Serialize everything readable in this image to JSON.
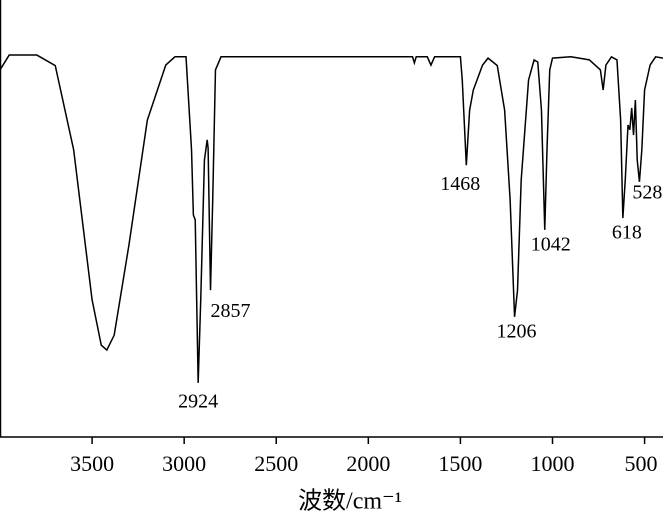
{
  "chart_data": {
    "type": "line",
    "x_label": "波数/cm⁻¹",
    "x": [
      4000,
      3950,
      3800,
      3700,
      3600,
      3500,
      3450,
      3420,
      3380,
      3300,
      3200,
      3100,
      3050,
      2990,
      2960,
      2950,
      2940,
      2924,
      2910,
      2890,
      2875,
      2870,
      2857,
      2845,
      2830,
      2800,
      1760,
      1750,
      1740,
      1680,
      1660,
      1640,
      1500,
      1490,
      1468,
      1450,
      1430,
      1400,
      1380,
      1350,
      1300,
      1260,
      1230,
      1206,
      1190,
      1170,
      1130,
      1100,
      1080,
      1060,
      1042,
      1030,
      1015,
      1000,
      900,
      800,
      740,
      725,
      710,
      680,
      650,
      630,
      618,
      605,
      590,
      580,
      570,
      560,
      550,
      540,
      528,
      515,
      500,
      470,
      440,
      400
    ],
    "values": [
      84,
      87.4,
      87.4,
      85,
      65.7,
      31.4,
      21,
      19.9,
      23.3,
      43.9,
      72.5,
      85.1,
      87,
      87,
      65.7,
      50.8,
      49.7,
      12.4,
      31.4,
      63.4,
      68,
      66.1,
      33.6,
      54.2,
      84,
      87,
      87,
      85.6,
      87,
      87,
      85.1,
      87,
      87,
      81.7,
      62.2,
      74.8,
      79.4,
      82.8,
      85.1,
      86.7,
      85,
      74.8,
      54.2,
      27.5,
      33.6,
      58.8,
      81.7,
      86.3,
      85.8,
      74.8,
      47.4,
      65.7,
      84,
      86.7,
      87,
      86.3,
      84,
      79.4,
      85.1,
      87,
      86.3,
      72.5,
      50.1,
      58.8,
      71.4,
      70.3,
      75.3,
      69.1,
      77.1,
      63.4,
      58.4,
      65.7,
      79.4,
      85.1,
      87,
      86.7
    ],
    "color": "#000000",
    "annotations": [
      2924,
      2857,
      1468,
      1206,
      1042,
      618,
      528
    ],
    "xlim": [
      4000,
      400
    ],
    "ylim": [
      0,
      100
    ],
    "xticks": [
      3500,
      3000,
      2500,
      2000,
      1500,
      1000,
      500
    ]
  }
}
